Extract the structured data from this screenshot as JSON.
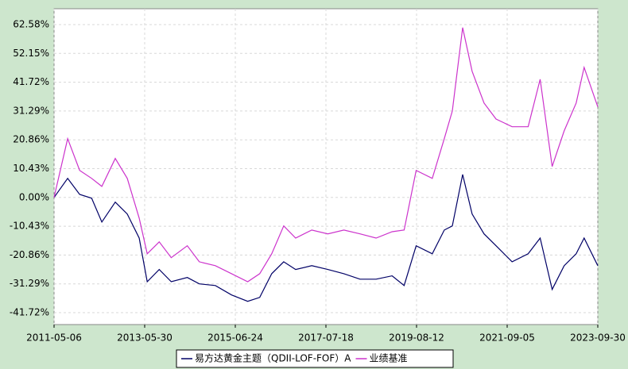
{
  "chart_data": {
    "type": "line",
    "x": [
      "2011-05-06",
      "2011-08-27",
      "2011-12-05",
      "2012-03-14",
      "2012-06-07",
      "2012-09-27",
      "2013-01-05",
      "2013-04-14",
      "2013-06-20",
      "2013-09-28",
      "2014-01-06",
      "2014-05-20",
      "2014-08-28",
      "2015-01-09",
      "2015-05-24",
      "2015-10-05",
      "2016-01-13",
      "2016-04-22",
      "2016-07-31",
      "2016-11-08",
      "2017-03-22",
      "2017-08-03",
      "2017-12-15",
      "2018-04-28",
      "2018-09-09",
      "2019-01-21",
      "2019-05-01",
      "2019-08-09",
      "2019-12-21",
      "2020-03-30",
      "2020-06-05",
      "2020-08-30",
      "2020-11-17",
      "2021-02-24",
      "2021-06-04",
      "2021-10-16",
      "2022-02-27",
      "2022-06-07",
      "2022-09-15",
      "2022-12-24",
      "2023-04-03",
      "2023-06-08",
      "2023-09-30"
    ],
    "series": [
      {
        "name": "易方达黄金主题（QDII-LOF-FOF）A",
        "color": "#000066",
        "values": [
          0,
          6.9,
          1.1,
          -0.3,
          -8.9,
          -1.7,
          -6,
          -14.7,
          -30.5,
          -26.1,
          -30.5,
          -29,
          -31.3,
          -31.9,
          -35.3,
          -37.6,
          -36.2,
          -27.6,
          -23.3,
          -26.1,
          -24.7,
          -26.1,
          -27.6,
          -29.6,
          -29.6,
          -28.4,
          -31.9,
          -17.5,
          -20.4,
          -11.8,
          -10.3,
          8.3,
          -6,
          -13.2,
          -17.5,
          -23.3,
          -20.4,
          -14.7,
          -33.3,
          -24.7,
          -20.4,
          -14.7,
          -24.7
        ]
      },
      {
        "name": "业绩基准",
        "color": "#cc33cc",
        "values": [
          0,
          21.3,
          9.8,
          6.9,
          4,
          14.1,
          6.9,
          -7.5,
          -20.4,
          -16.1,
          -21.8,
          -17.5,
          -23.3,
          -24.7,
          -27.6,
          -30.5,
          -27.6,
          -20.4,
          -10.3,
          -14.7,
          -11.8,
          -13.2,
          -11.8,
          -13.2,
          -14.7,
          -12.4,
          -11.8,
          9.8,
          6.9,
          21.3,
          31.3,
          61.5,
          45.7,
          34.2,
          28.4,
          25.6,
          25.6,
          42.8,
          11.2,
          24.1,
          34.2,
          47.1,
          32.8
        ]
      }
    ],
    "xlim": [
      "2011-05-06",
      "2023-09-30"
    ],
    "xticks": [
      "2011-05-06",
      "2013-05-30",
      "2015-06-24",
      "2017-07-18",
      "2019-08-12",
      "2021-09-05",
      "2023-09-30"
    ],
    "ylim": [
      -46.03,
      68.33
    ],
    "yticks": [
      {
        "value": 62.58,
        "label": "62.58%"
      },
      {
        "value": 52.15,
        "label": "52.15%"
      },
      {
        "value": 41.72,
        "label": "41.72%"
      },
      {
        "value": 31.29,
        "label": "31.29%"
      },
      {
        "value": 20.86,
        "label": "20.86%"
      },
      {
        "value": 10.43,
        "label": "10.43%"
      },
      {
        "value": 0,
        "label": "0.00%"
      },
      {
        "value": -10.43,
        "label": "-10.43%"
      },
      {
        "value": -20.86,
        "label": "-20.86%"
      },
      {
        "value": -31.29,
        "label": "-31.29%"
      },
      {
        "value": -41.72,
        "label": "-41.72%"
      }
    ],
    "grid": true
  }
}
